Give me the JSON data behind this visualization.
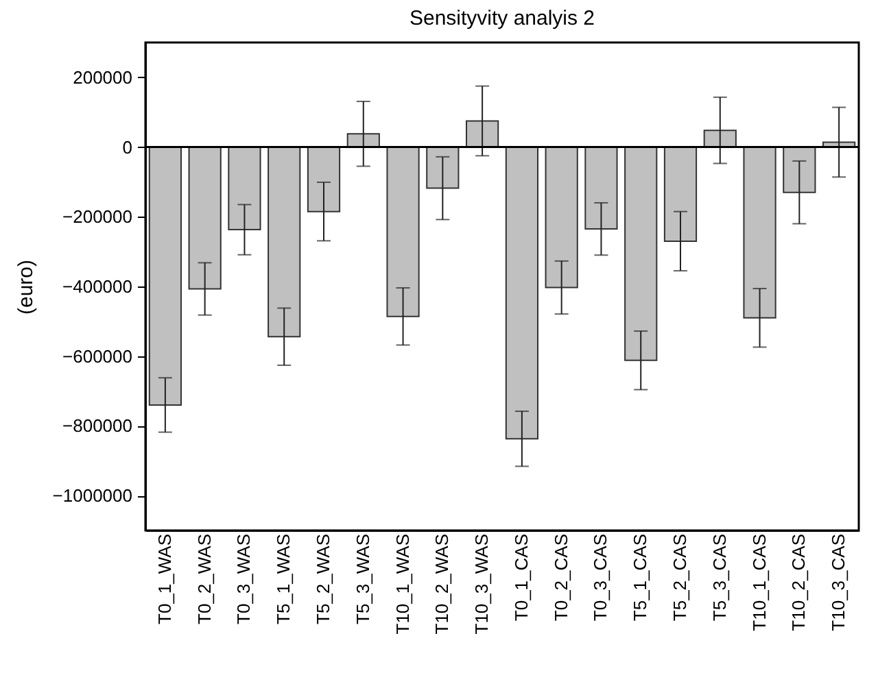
{
  "chart_data": {
    "type": "bar",
    "title": "Sensityvity analyis 2",
    "ylabel": "(euro)",
    "categories": [
      "T0_1_WAS",
      "T0_2_WAS",
      "T0_3_WAS",
      "T5_1_WAS",
      "T5_2_WAS",
      "T5_3_WAS",
      "T10_1_WAS",
      "T10_2_WAS",
      "T10_3_WAS",
      "T0_1_CAS",
      "T0_2_CAS",
      "T0_3_CAS",
      "T5_1_CAS",
      "T5_2_CAS",
      "T5_3_CAS",
      "T10_1_CAS",
      "T10_2_CAS",
      "T10_3_CAS"
    ],
    "values": [
      -740000,
      -407000,
      -237000,
      -544000,
      -185000,
      38000,
      -486000,
      -118000,
      75000,
      -837000,
      -403000,
      -235000,
      -612000,
      -270000,
      48000,
      -490000,
      -130000,
      14000
    ],
    "errors": [
      78000,
      75000,
      72000,
      82000,
      84000,
      93000,
      82000,
      90000,
      100000,
      79000,
      76000,
      75000,
      84000,
      85000,
      95000,
      84000,
      90000,
      100000
    ],
    "color": "#c0c0c0",
    "ylim": [
      -1100000,
      300000
    ],
    "yticks": [
      -1000000,
      -800000,
      -600000,
      -400000,
      -200000,
      0,
      200000
    ],
    "ref_lines": [
      {
        "axis": "y",
        "value": 0
      }
    ],
    "grid": false
  }
}
